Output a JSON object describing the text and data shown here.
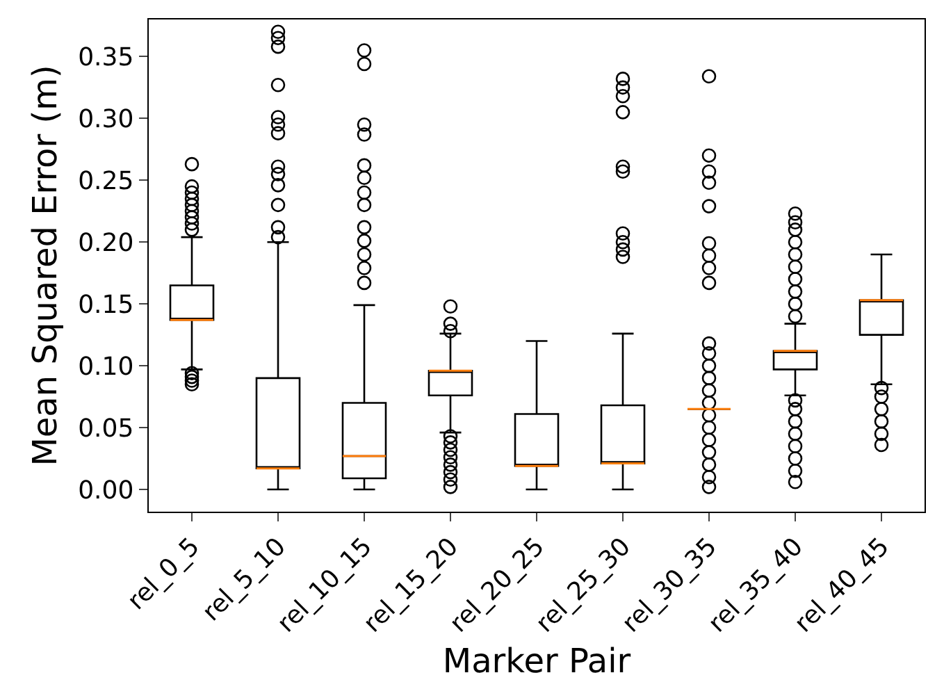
{
  "chart_data": {
    "type": "box",
    "xlabel": "Marker Pair",
    "ylabel": "Mean Squared Error (m)",
    "categories": [
      "rel_0_5",
      "rel_5_10",
      "rel_10_15",
      "rel_15_20",
      "rel_20_25",
      "rel_25_30",
      "rel_30_35",
      "rel_35_40",
      "rel_40_45"
    ],
    "color": "#000000",
    "marker": "circle",
    "grid": false,
    "ylim": [
      -0.018,
      0.38
    ],
    "yticks": [
      {
        "value": 0,
        "label": "0.00"
      },
      0.05,
      {
        "value": 0.1,
        "label": "0.10"
      },
      0.15,
      {
        "value": 0.2,
        "label": "0.20"
      },
      0.25,
      {
        "value": 0.3,
        "label": "0.30"
      },
      0.35
    ],
    "boxes": [
      {
        "low": 0.097,
        "q1": 0.137,
        "median": 0.137,
        "q3": 0.165,
        "high": 0.204,
        "outliers": [
          0.21,
          0.215,
          0.22,
          0.225,
          0.23,
          0.235,
          0.24,
          0.245,
          0.263,
          0.085,
          0.088,
          0.091,
          0.094
        ]
      },
      {
        "low": 0,
        "q1": 0.017,
        "median": 0.017,
        "q3": 0.09,
        "high": 0.2,
        "outliers": [
          0.204,
          0.212,
          0.23,
          0.246,
          0.255,
          0.261,
          0.288,
          0.295,
          0.301,
          0.327,
          0.358,
          0.365,
          0.37
        ]
      },
      {
        "low": 0,
        "q1": 0.009,
        "median": 0.027,
        "q3": 0.07,
        "high": 0.149,
        "outliers": [
          0.167,
          0.179,
          0.19,
          0.201,
          0.212,
          0.23,
          0.24,
          0.252,
          0.262,
          0.287,
          0.295,
          0.344,
          0.355
        ]
      },
      {
        "low": 0.046,
        "q1": 0.076,
        "median": 0.096,
        "q3": 0.096,
        "high": 0.126,
        "outliers": [
          0.128,
          0.134,
          0.148,
          0.002,
          0.008,
          0.014,
          0.02,
          0.026,
          0.032,
          0.038,
          0.043
        ]
      },
      {
        "low": 0,
        "q1": 0.019,
        "median": 0.019,
        "q3": 0.061,
        "high": 0.12
      },
      {
        "low": 0,
        "q1": 0.021,
        "median": 0.021,
        "q3": 0.068,
        "high": 0.126,
        "outliers": [
          0.188,
          0.194,
          0.2,
          0.207,
          0.257,
          0.261,
          0.305,
          0.318,
          0.325,
          0.332
        ]
      },
      {
        "low": 0.065,
        "q1": 0.065,
        "median": 0.065,
        "q3": 0.065,
        "high": 0.065,
        "outliers": [
          0.002,
          0.01,
          0.02,
          0.03,
          0.04,
          0.05,
          0.06,
          0.07,
          0.08,
          0.09,
          0.1,
          0.11,
          0.118,
          0.167,
          0.179,
          0.189,
          0.199,
          0.229,
          0.248,
          0.257,
          0.27,
          0.334
        ]
      },
      {
        "low": 0.076,
        "q1": 0.097,
        "median": 0.112,
        "q3": 0.112,
        "high": 0.134,
        "outliers": [
          0.14,
          0.15,
          0.16,
          0.17,
          0.18,
          0.19,
          0.2,
          0.21,
          0.216,
          0.223,
          0.006,
          0.015,
          0.025,
          0.035,
          0.045,
          0.055,
          0.065,
          0.072
        ]
      },
      {
        "low": 0.085,
        "q1": 0.125,
        "median": 0.153,
        "q3": 0.153,
        "high": 0.19,
        "outliers": [
          0.036,
          0.045,
          0.055,
          0.065,
          0.075,
          0.082
        ]
      }
    ]
  }
}
